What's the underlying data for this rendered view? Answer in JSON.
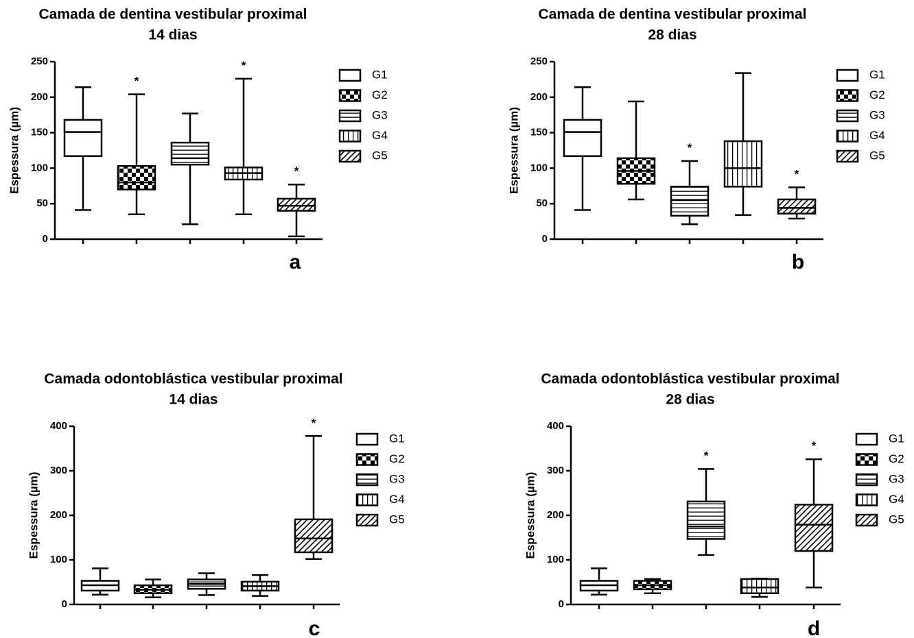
{
  "legend_items": [
    "G1",
    "G2",
    "G3",
    "G4",
    "G5"
  ],
  "pattern_names": [
    "blank-pattern",
    "checker-pattern",
    "horizontal-lines-pattern",
    "vertical-lines-pattern",
    "diagonal-hatch-pattern"
  ],
  "chart_data": [
    {
      "type": "boxplot",
      "panel_letter": "a",
      "title_line1": "Camada de dentina vestibular proximal",
      "title_line2": "14 dias",
      "ylabel": "Espessura (µm)",
      "ylim": [
        0,
        250
      ],
      "yticks": [
        "0",
        "50",
        "100",
        "150",
        "200",
        "250"
      ],
      "categories": [
        "G1",
        "G2",
        "G3",
        "G4",
        "G5"
      ],
      "boxes": [
        {
          "min": 41,
          "q1": 117,
          "median": 151,
          "q3": 168,
          "max": 214,
          "star": false
        },
        {
          "min": 35,
          "q1": 70,
          "median": 80,
          "q3": 103,
          "max": 204,
          "star": true
        },
        {
          "min": 21,
          "q1": 105,
          "median": 114,
          "q3": 136,
          "max": 177,
          "star": false
        },
        {
          "min": 35,
          "q1": 84,
          "median": 93,
          "q3": 101,
          "max": 226,
          "star": true
        },
        {
          "min": 4,
          "q1": 40,
          "median": 47,
          "q3": 57,
          "max": 77,
          "star": true
        }
      ],
      "star_label": "*"
    },
    {
      "type": "boxplot",
      "panel_letter": "b",
      "title_line1": "Camada de dentina vestibular proximal",
      "title_line2": "28 dias",
      "ylabel": "Espessura (µm)",
      "ylim": [
        0,
        250
      ],
      "yticks": [
        "0",
        "50",
        "100",
        "150",
        "200",
        "250"
      ],
      "categories": [
        "G1",
        "G2",
        "G3",
        "G4",
        "G5"
      ],
      "boxes": [
        {
          "min": 41,
          "q1": 117,
          "median": 151,
          "q3": 168,
          "max": 214,
          "star": false
        },
        {
          "min": 56,
          "q1": 78,
          "median": 96,
          "q3": 114,
          "max": 194,
          "star": false
        },
        {
          "min": 21,
          "q1": 33,
          "median": 55,
          "q3": 74,
          "max": 110,
          "star": true
        },
        {
          "min": 34,
          "q1": 74,
          "median": 100,
          "q3": 138,
          "max": 234,
          "star": false
        },
        {
          "min": 29,
          "q1": 36,
          "median": 44,
          "q3": 56,
          "max": 73,
          "star": true
        }
      ],
      "star_label": "*"
    },
    {
      "type": "boxplot",
      "panel_letter": "c",
      "title_line1": "Camada odontoblástica vestibular proximal",
      "title_line2": "14 dias",
      "ylabel": "Espessura (µm)",
      "ylim": [
        0,
        400
      ],
      "yticks": [
        "0",
        "100",
        "200",
        "300",
        "400"
      ],
      "categories": [
        "G1",
        "G2",
        "G3",
        "G4",
        "G5"
      ],
      "boxes": [
        {
          "min": 22,
          "q1": 31,
          "median": 43,
          "q3": 53,
          "max": 81,
          "star": false
        },
        {
          "min": 16,
          "q1": 25,
          "median": 33,
          "q3": 43,
          "max": 56,
          "star": false
        },
        {
          "min": 21,
          "q1": 35,
          "median": 46,
          "q3": 56,
          "max": 70,
          "star": false
        },
        {
          "min": 19,
          "q1": 31,
          "median": 41,
          "q3": 51,
          "max": 66,
          "star": false
        },
        {
          "min": 102,
          "q1": 117,
          "median": 148,
          "q3": 191,
          "max": 378,
          "star": true
        }
      ],
      "star_label": "*"
    },
    {
      "type": "boxplot",
      "panel_letter": "d",
      "title_line1": "Camada odontoblástica vestibular proximal",
      "title_line2": "28 dias",
      "ylabel": "Espessura (µm)",
      "ylim": [
        0,
        400
      ],
      "yticks": [
        "0",
        "100",
        "200",
        "300",
        "400"
      ],
      "categories": [
        "G1",
        "G2",
        "G3",
        "G4",
        "G5"
      ],
      "boxes": [
        {
          "min": 22,
          "q1": 31,
          "median": 43,
          "q3": 53,
          "max": 81,
          "star": false
        },
        {
          "min": 25,
          "q1": 34,
          "median": 43,
          "q3": 53,
          "max": 57,
          "star": false
        },
        {
          "min": 111,
          "q1": 147,
          "median": 175,
          "q3": 231,
          "max": 304,
          "star": true
        },
        {
          "min": 17,
          "q1": 25,
          "median": 38,
          "q3": 57,
          "max": 58,
          "star": false
        },
        {
          "min": 38,
          "q1": 120,
          "median": 179,
          "q3": 224,
          "max": 326,
          "star": true
        }
      ],
      "star_label": "*"
    }
  ]
}
